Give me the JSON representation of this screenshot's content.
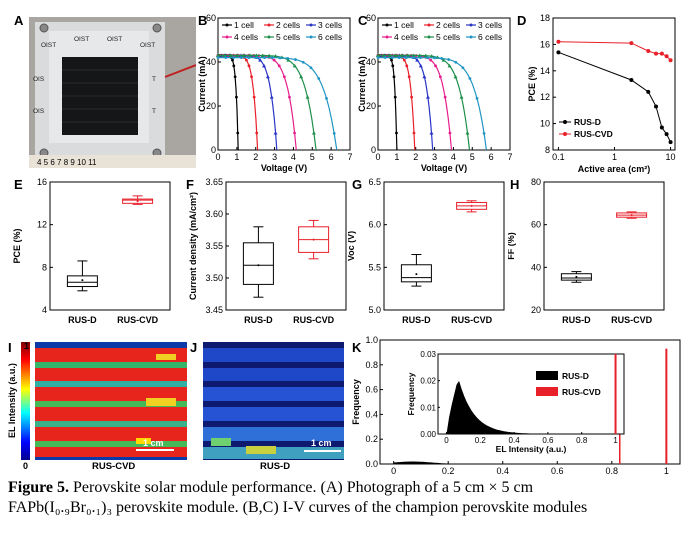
{
  "panel_labels": {
    "A": "A",
    "B": "B",
    "C": "C",
    "D": "D",
    "E": "E",
    "F": "F",
    "G": "G",
    "H": "H",
    "I": "I",
    "J": "J",
    "K": "K"
  },
  "photo": {
    "oist_labels": [
      "OIST",
      "OIST",
      "OIST",
      "OIST",
      "OIS",
      "T",
      "OIS",
      "T"
    ],
    "ruler_text": "4 5 6 7 8 9 10 11"
  },
  "iv_axes": {
    "xlabel": "Voltage (V)",
    "ylabel": "Current (mA)"
  },
  "pce_axes": {
    "xlabel": "Active area (cm²)",
    "ylabel": "PCE (%)"
  },
  "box_axes": {
    "E": {
      "ylabel": "PCE (%)"
    },
    "F": {
      "ylabel": "Current density (mA/cm²)"
    },
    "G": {
      "ylabel": "Voc (V)"
    },
    "H": {
      "ylabel": "FF (%)"
    }
  },
  "map_axes": {
    "colorbar_label": "EL Intensity (a.u.)",
    "colorbar_max": "1",
    "colorbar_min": "0",
    "scale_bar_I": "1 cm",
    "scale_bar_J": "1 cm",
    "label_I": "RUS-CVD",
    "label_J": "RUS-D"
  },
  "hist_axes": {
    "xlabel": "EL Intensity (a.u.)",
    "ylabel": "Frequency",
    "inset_xlabel": "EL Intensity (a.u.)",
    "inset_ylabel": "Frequency"
  },
  "caption": {
    "line1_bold": "Figure 5.",
    "line1": " Perovskite solar module performance. (A) Photograph of a 5 cm × 5 cm",
    "line2": "FAPb(I₀.₉Br₀.₁)₃ perovskite module. (B,C) I-V curves of the champion perovskite modules"
  },
  "colors": {
    "rusd": "#000000",
    "ruscvd": "#e8202a",
    "c1": "#000000",
    "c2": "#e8202a",
    "c3": "#2a35c8",
    "c4": "#e61e8c",
    "c5": "#1e8f4a",
    "c6": "#2196c4"
  },
  "chart_data": [
    {
      "id": "B",
      "type": "line",
      "xlabel": "Voltage (V)",
      "ylabel": "Current (mA)",
      "xlim": [
        0,
        7
      ],
      "ylim": [
        0,
        60
      ],
      "xticks": [
        0,
        1,
        2,
        3,
        4,
        5,
        6,
        7
      ],
      "yticks": [
        0,
        20,
        40,
        60
      ],
      "legend": "top",
      "series": [
        {
          "name": "1 cell",
          "isc": 43,
          "voc": 1.07,
          "vmpp": 0.9
        },
        {
          "name": "2 cells",
          "isc": 43,
          "voc": 2.1,
          "vmpp": 1.78
        },
        {
          "name": "3 cells",
          "isc": 43,
          "voc": 3.12,
          "vmpp": 2.6
        },
        {
          "name": "4 cells",
          "isc": 43,
          "voc": 4.15,
          "vmpp": 3.4
        },
        {
          "name": "5 cells",
          "isc": 43,
          "voc": 5.2,
          "vmpp": 4.3
        },
        {
          "name": "6 cells",
          "isc": 42,
          "voc": 6.3,
          "vmpp": 5.2
        }
      ]
    },
    {
      "id": "C",
      "type": "line",
      "xlabel": "Voltage (V)",
      "ylabel": "Current (mA)",
      "xlim": [
        0,
        7
      ],
      "ylim": [
        0,
        60
      ],
      "xticks": [
        0,
        1,
        2,
        3,
        4,
        5,
        6,
        7
      ],
      "yticks": [
        0,
        20,
        40,
        60
      ],
      "legend": "top",
      "series": [
        {
          "name": "1 cell",
          "isc": 43,
          "voc": 1.0,
          "vmpp": 0.65
        },
        {
          "name": "2 cells",
          "isc": 43,
          "voc": 1.95,
          "vmpp": 1.2
        },
        {
          "name": "3 cells",
          "isc": 43,
          "voc": 2.9,
          "vmpp": 1.8
        },
        {
          "name": "4 cells",
          "isc": 43,
          "voc": 3.9,
          "vmpp": 2.4
        },
        {
          "name": "5 cells",
          "isc": 43,
          "voc": 4.85,
          "vmpp": 3.0
        },
        {
          "name": "6 cells",
          "isc": 42,
          "voc": 5.75,
          "vmpp": 3.6
        }
      ]
    },
    {
      "id": "D",
      "type": "line",
      "xlabel": "Active area (cm²)",
      "ylabel": "PCE (%)",
      "xscale": "log",
      "xlim": [
        0.08,
        12
      ],
      "ylim": [
        8,
        18
      ],
      "xticks": [
        0.1,
        1,
        10
      ],
      "yticks": [
        8,
        10,
        12,
        14,
        16,
        18
      ],
      "legend": "bottom-left",
      "series": [
        {
          "name": "RUS-D",
          "x": [
            0.1,
            2,
            4,
            5.5,
            7,
            8.5,
            10
          ],
          "y": [
            15.4,
            13.3,
            12.4,
            11.3,
            9.7,
            9.2,
            8.6
          ]
        },
        {
          "name": "RUS-CVD",
          "x": [
            0.1,
            2,
            4,
            5.5,
            7,
            8.5,
            10
          ],
          "y": [
            16.2,
            16.1,
            15.5,
            15.3,
            15.3,
            15.1,
            14.8
          ]
        }
      ]
    },
    {
      "id": "E",
      "type": "box",
      "ylabel": "PCE (%)",
      "ylim": [
        4,
        16
      ],
      "yticks": [
        4,
        8,
        12,
        16
      ],
      "categories": [
        "RUS-D",
        "RUS-CVD"
      ],
      "boxes": [
        {
          "min": 5.8,
          "q1": 6.2,
          "median": 6.6,
          "q3": 7.2,
          "max": 8.6,
          "mean": 6.8
        },
        {
          "min": 13.9,
          "q1": 14.0,
          "median": 14.3,
          "q3": 14.4,
          "max": 14.7,
          "mean": 14.2
        }
      ]
    },
    {
      "id": "F",
      "type": "box",
      "ylabel": "Current density (mA/cm²)",
      "ylim": [
        3.45,
        3.65
      ],
      "yticks": [
        3.45,
        3.5,
        3.55,
        3.6,
        3.65
      ],
      "categories": [
        "RUS-D",
        "RUS-CVD"
      ],
      "boxes": [
        {
          "min": 3.47,
          "q1": 3.49,
          "median": 3.52,
          "q3": 3.555,
          "max": 3.58,
          "mean": 3.52
        },
        {
          "min": 3.53,
          "q1": 3.54,
          "median": 3.56,
          "q3": 3.58,
          "max": 3.59,
          "mean": 3.56
        }
      ]
    },
    {
      "id": "G",
      "type": "box",
      "ylabel": "Voc (V)",
      "ylim": [
        5.0,
        6.5
      ],
      "yticks": [
        5.0,
        5.5,
        6.0,
        6.5
      ],
      "categories": [
        "RUS-D",
        "RUS-CVD"
      ],
      "boxes": [
        {
          "min": 5.28,
          "q1": 5.33,
          "median": 5.38,
          "q3": 5.53,
          "max": 5.65,
          "mean": 5.42
        },
        {
          "min": 6.15,
          "q1": 6.18,
          "median": 6.22,
          "q3": 6.26,
          "max": 6.28,
          "mean": 6.22
        }
      ]
    },
    {
      "id": "H",
      "type": "box",
      "ylabel": "FF (%)",
      "ylim": [
        20,
        80
      ],
      "yticks": [
        20,
        40,
        60,
        80
      ],
      "categories": [
        "RUS-D",
        "RUS-CVD"
      ],
      "boxes": [
        {
          "min": 33,
          "q1": 34,
          "median": 35,
          "q3": 37,
          "max": 38,
          "mean": 35.5
        },
        {
          "min": 63,
          "q1": 63.5,
          "median": 64.5,
          "q3": 65.5,
          "max": 66,
          "mean": 64.5
        }
      ]
    },
    {
      "id": "K",
      "type": "histogram",
      "xlabel": "EL Intensity (a.u.)",
      "ylabel": "Frequency",
      "xlim": [
        -0.05,
        1.05
      ],
      "ylim": [
        0,
        1.0
      ],
      "xticks": [
        0,
        0.2,
        0.4,
        0.6,
        0.8,
        1
      ],
      "yticks": [
        0,
        0.2,
        0.4,
        0.6,
        0.8,
        1.0
      ],
      "legend": "inset-right",
      "series": [
        {
          "name": "RUS-D",
          "peak_x": 0.07,
          "peak_y": 0.02
        },
        {
          "name": "RUS-CVD",
          "peak_x": 1.0,
          "peak_y": 0.93
        }
      ],
      "inset": {
        "xlim": [
          -0.05,
          1.05
        ],
        "ylim": [
          0,
          0.03
        ],
        "xticks": [
          0,
          0.2,
          0.4,
          0.6,
          0.8,
          1
        ],
        "yticks": [
          0,
          0.01,
          0.02,
          0.03
        ],
        "rusd_peak": [
          0.07,
          0.021
        ]
      }
    }
  ]
}
